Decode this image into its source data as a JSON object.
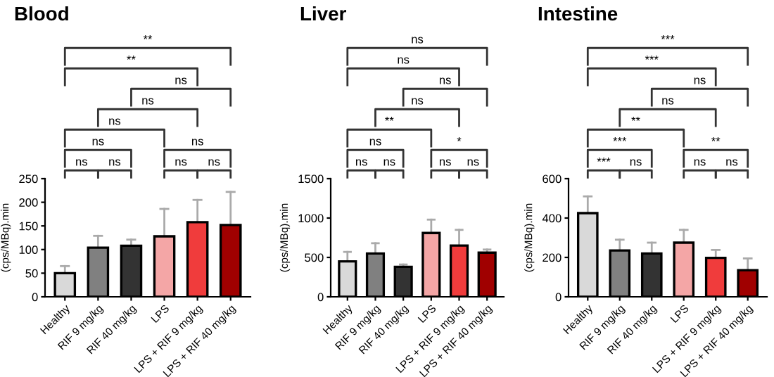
{
  "chart_data": [
    {
      "type": "bar",
      "title": "Blood",
      "ylabel": "(cps/MBq).min",
      "categories": [
        "Healthy",
        "RIF 9 mg/kg",
        "RIF 40 mg/kg",
        "LPS",
        "LPS + RIF 9 mg/kg",
        "LPS + RIF 40 mg/kg"
      ],
      "values": [
        50,
        104,
        108,
        128,
        158,
        152
      ],
      "colors": [
        "#d9d9d9",
        "#808080",
        "#333333",
        "#f4a6a6",
        "#f03c3c",
        "#a00000"
      ],
      "errors": [
        [
          50,
          65
        ],
        [
          104,
          129
        ],
        [
          108,
          121
        ],
        [
          128,
          186
        ],
        [
          158,
          205
        ],
        [
          152,
          222
        ]
      ],
      "ylim": [
        0,
        250
      ],
      "yticks": [
        0,
        50,
        100,
        150,
        200,
        250
      ],
      "annotations": [
        "ns",
        "ns",
        "ns",
        "ns",
        "ns",
        "ns",
        "ns",
        "ns",
        "ns",
        "**",
        "**"
      ]
    },
    {
      "type": "bar",
      "title": "Liver",
      "ylabel": "(cps/MBq).min",
      "categories": [
        "Healthy",
        "RIF 9 mg/kg",
        "RIF 40 mg/kg",
        "LPS",
        "LPS + RIF 9 mg/kg",
        "LPS + RIF 40 mg/kg"
      ],
      "values": [
        450,
        550,
        380,
        810,
        650,
        560
      ],
      "colors": [
        "#d9d9d9",
        "#808080",
        "#333333",
        "#f4a6a6",
        "#f03c3c",
        "#a00000"
      ],
      "errors": [
        [
          450,
          570
        ],
        [
          550,
          680
        ],
        [
          380,
          410
        ],
        [
          810,
          980
        ],
        [
          650,
          850
        ],
        [
          560,
          600
        ]
      ],
      "ylim": [
        0,
        1500
      ],
      "yticks": [
        0,
        500,
        1000,
        1500
      ],
      "annotations": [
        "ns",
        "ns",
        "ns",
        "ns",
        "ns",
        "*",
        "**",
        "ns",
        "ns",
        "ns",
        "ns"
      ]
    },
    {
      "type": "bar",
      "title": "Intestine",
      "ylabel": "(cps/MBq).min",
      "categories": [
        "Healthy",
        "RIF 9 mg/kg",
        "RIF 40 mg/kg",
        "LPS",
        "LPS + RIF 9 mg/kg",
        "LPS + RIF 40 mg/kg"
      ],
      "values": [
        425,
        235,
        220,
        275,
        198,
        135
      ],
      "colors": [
        "#d9d9d9",
        "#808080",
        "#333333",
        "#f4a6a6",
        "#f03c3c",
        "#a00000"
      ],
      "errors": [
        [
          425,
          510
        ],
        [
          235,
          290
        ],
        [
          220,
          275
        ],
        [
          275,
          340
        ],
        [
          198,
          238
        ],
        [
          135,
          195
        ]
      ],
      "ylim": [
        0,
        600
      ],
      "yticks": [
        0,
        200,
        400,
        600
      ],
      "annotations": [
        "***",
        "ns",
        "ns",
        "ns",
        "***",
        "**",
        "**",
        "ns",
        "ns",
        "***",
        "***"
      ]
    }
  ]
}
